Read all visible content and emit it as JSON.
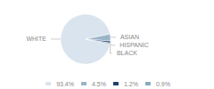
{
  "chart_data": {
    "type": "pie",
    "categories": [
      "WHITE",
      "ASIAN",
      "HISPANIC",
      "BLACK"
    ],
    "values": [
      93.4,
      4.5,
      1.2,
      0.9
    ],
    "value_labels": [
      "93.4%",
      "4.5%",
      "1.2%",
      "0.9%"
    ],
    "colors": [
      "#d9e4ee",
      "#9ab4c8",
      "#1f3f6e",
      "#8aaabf"
    ],
    "legend": "bottom"
  }
}
